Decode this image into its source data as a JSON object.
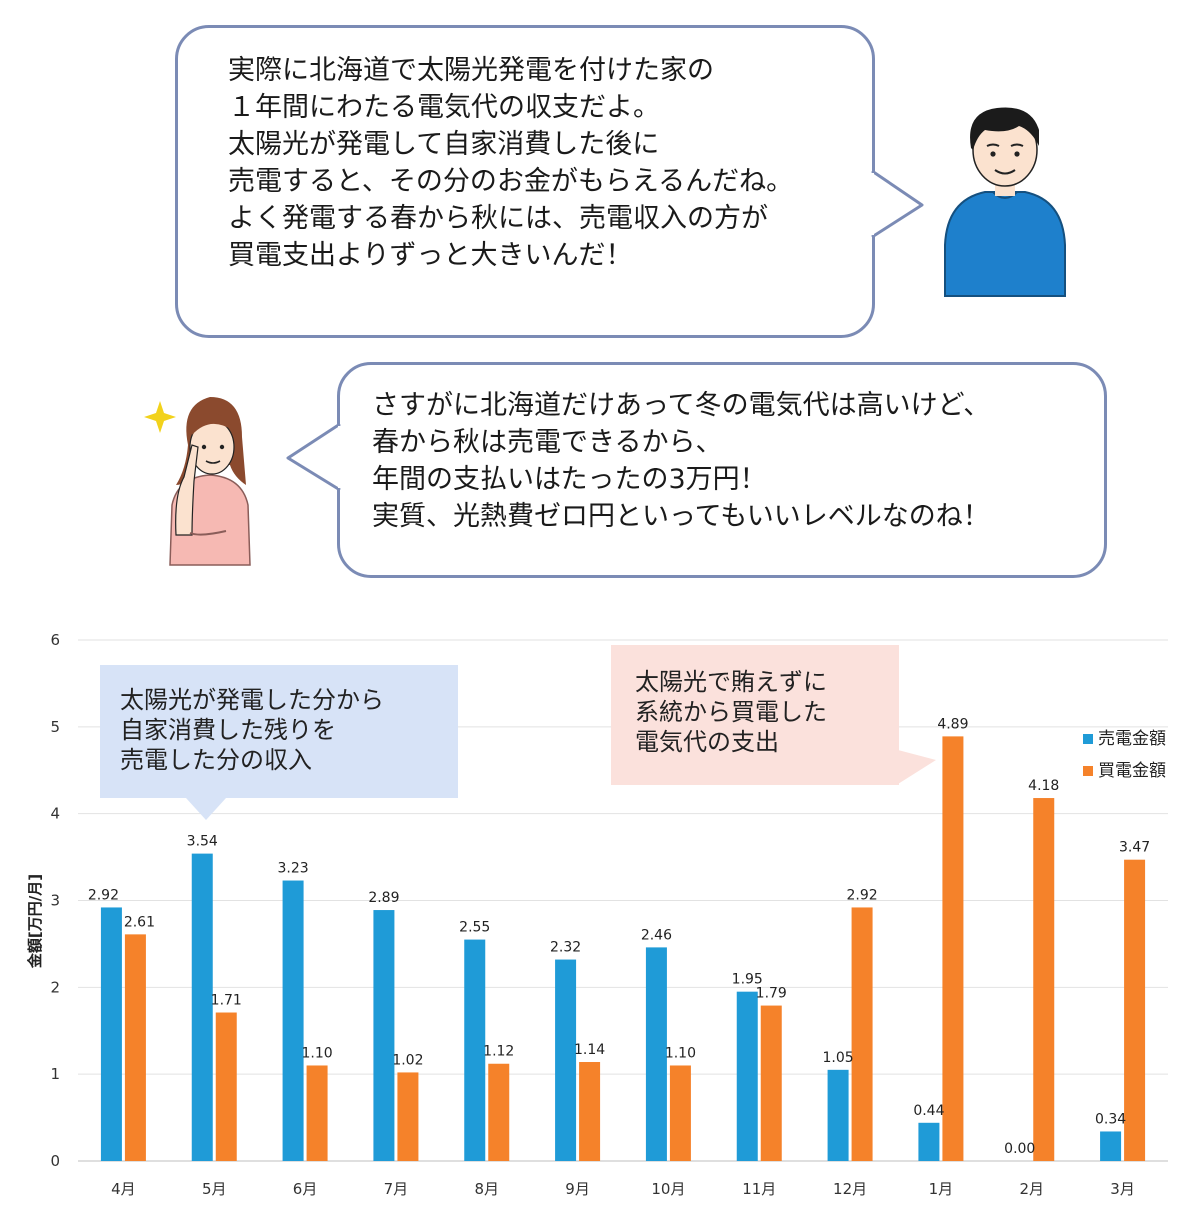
{
  "bubble_man": {
    "lines": [
      "実際に北海道で太陽光発電を付けた家の",
      "１年間にわたる電気代の収支だよ。",
      "太陽光が発電して自家消費した後に",
      "売電すると、その分のお金がもらえるんだね。",
      "よく発電する春から秋には、売電収入の方が",
      "買電支出よりずっと大きいんだ！"
    ]
  },
  "bubble_woman": {
    "lines": [
      "さすがに北海道だけあって冬の電気代は高いけど、",
      "春から秋は売電できるから、",
      "年間の支払いはたったの3万円！",
      "実質、光熱費ゼロ円といってもいいレベルなのね！"
    ]
  },
  "callout_sell": {
    "lines": [
      "太陽光が発電した分から",
      "自家消費した残りを",
      "売電した分の収入"
    ]
  },
  "callout_buy": {
    "lines": [
      "太陽光で賄えずに",
      "系統から買電した",
      "電気代の支出"
    ]
  },
  "colors": {
    "sell": "#1f9bd7",
    "buy": "#f5822a",
    "bubble_border": "#7b8bb5",
    "man_shirt": "#1e80cc",
    "woman_shirt": "#f6b9b3",
    "sparkle": "#f2d21b"
  },
  "chart_data": {
    "type": "bar",
    "ylabel": "金額[万円/月]",
    "ylim": [
      0,
      6
    ],
    "yticks": [
      "0",
      "1",
      "2",
      "3",
      "4",
      "5",
      "6"
    ],
    "grid": true,
    "legend_position": "right",
    "categories": [
      "4月",
      "5月",
      "6月",
      "7月",
      "8月",
      "9月",
      "10月",
      "11月",
      "12月",
      "1月",
      "2月",
      "3月"
    ],
    "series": [
      {
        "name": "売電金額",
        "values": [
          2.92,
          3.54,
          3.23,
          2.89,
          2.55,
          2.32,
          2.46,
          1.95,
          1.05,
          0.44,
          0.0,
          0.34
        ],
        "labels": [
          "2.92",
          "3.54",
          "3.23",
          "2.89",
          "2.55",
          "2.32",
          "2.46",
          "1.95",
          "1.05",
          "0.44",
          "0.00",
          "0.34"
        ]
      },
      {
        "name": "買電金額",
        "values": [
          2.61,
          1.71,
          1.1,
          1.02,
          1.12,
          1.14,
          1.1,
          1.79,
          2.92,
          4.89,
          4.18,
          3.47
        ],
        "labels": [
          "2.61",
          "1.71",
          "1.10",
          "1.02",
          "1.12",
          "1.14",
          "1.10",
          "1.79",
          "2.92",
          "4.89",
          "4.18",
          "3.47"
        ]
      }
    ]
  }
}
